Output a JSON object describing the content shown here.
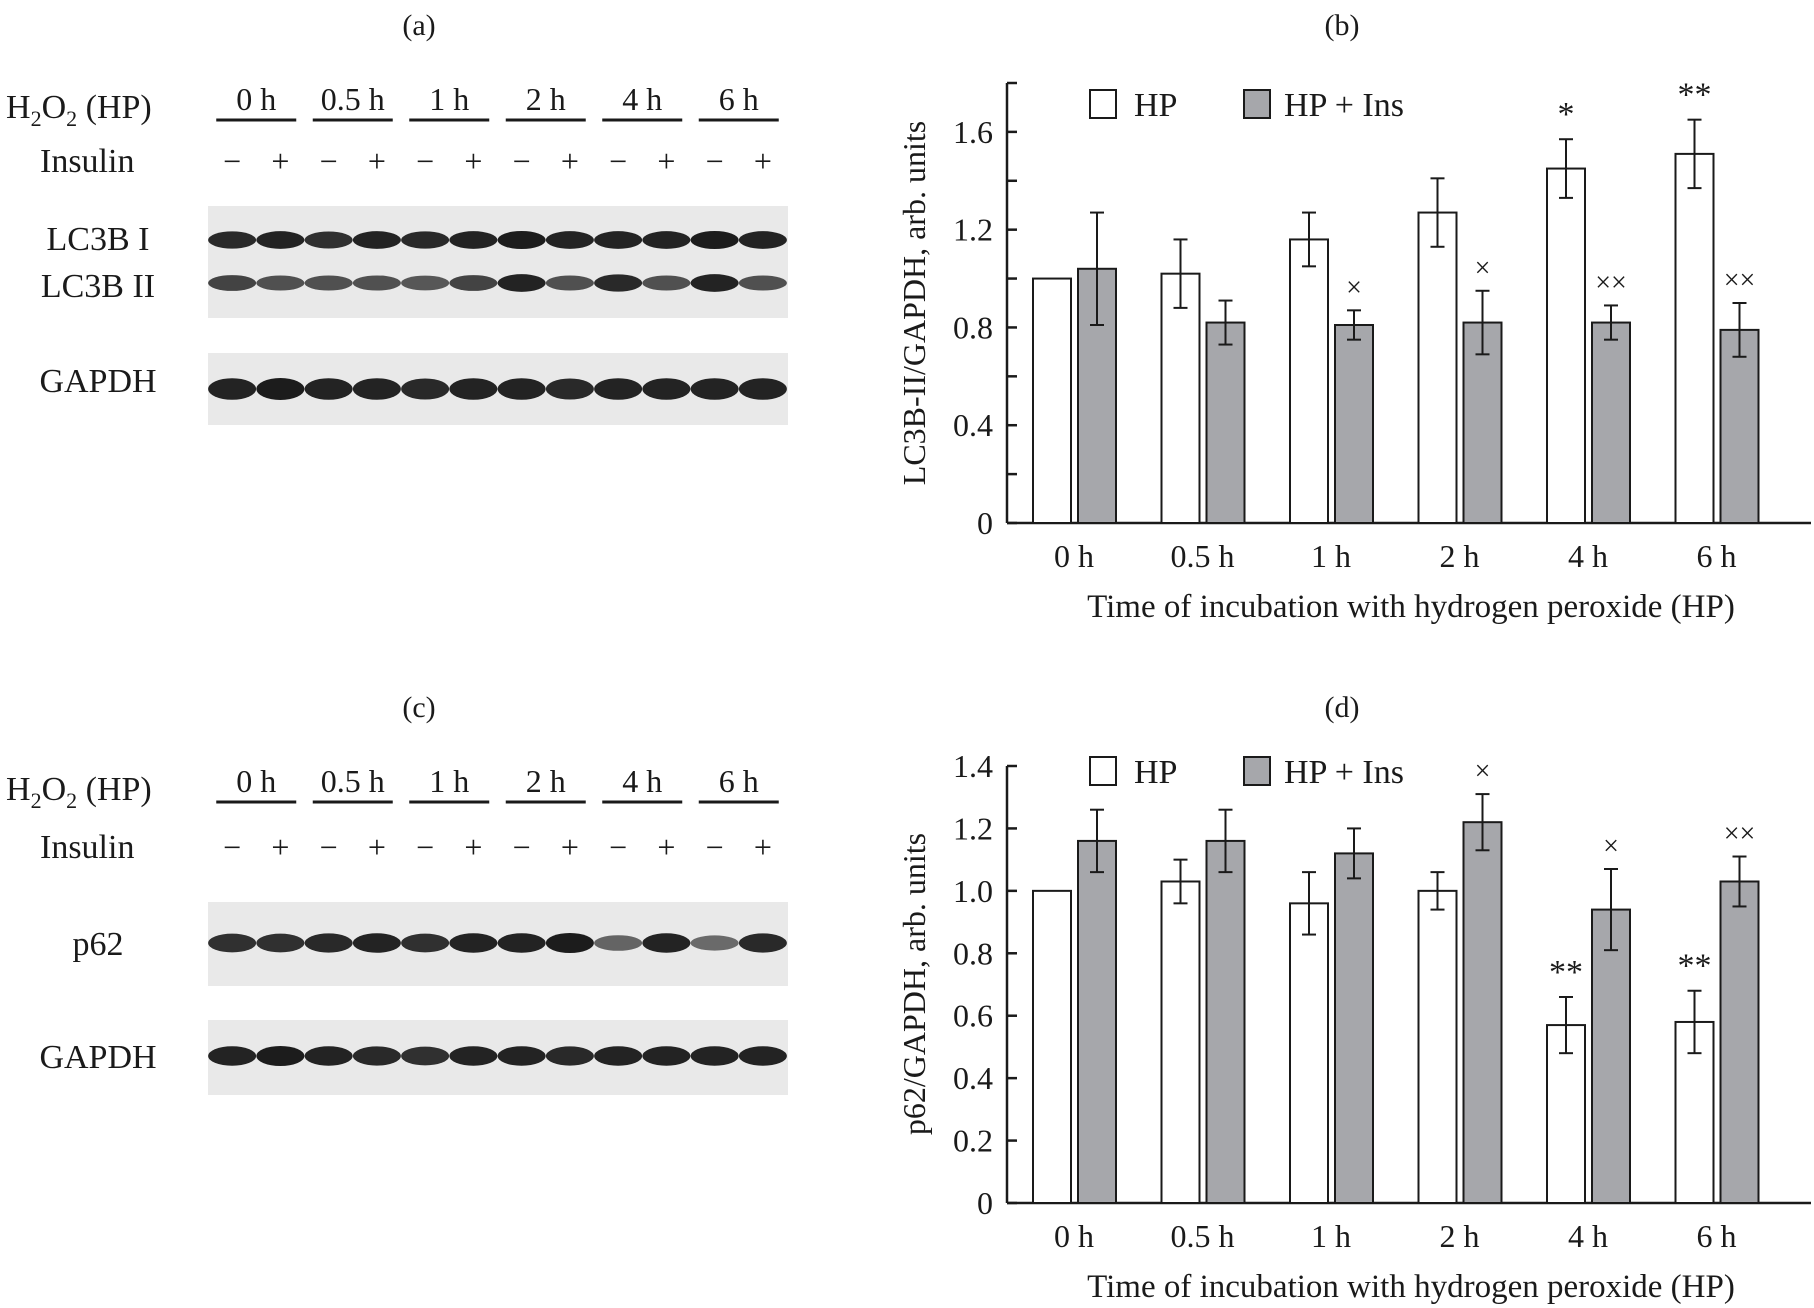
{
  "panels": {
    "a": {
      "label": "(a)",
      "h2o2_parts": [
        "H",
        "2",
        "O",
        "2",
        " (HP)"
      ],
      "insulin_label": "Insulin",
      "times": [
        "0 h",
        "0.5 h",
        "1 h",
        "2 h",
        "4 h",
        "6 h"
      ],
      "signs": [
        "−",
        "+"
      ],
      "bands": [
        "LC3B I",
        "LC3B II",
        "GAPDH"
      ]
    },
    "c": {
      "label": "(c)",
      "h2o2_parts": [
        "H",
        "2",
        "O",
        "2",
        " (HP)"
      ],
      "insulin_label": "Insulin",
      "times": [
        "0 h",
        "0.5 h",
        "1 h",
        "2 h",
        "4 h",
        "6 h"
      ],
      "signs": [
        "−",
        "+"
      ],
      "bands": [
        "p62",
        "GAPDH"
      ]
    }
  },
  "colors": {
    "hp": "#ffffff",
    "hp_ins": "#a6a7ab",
    "axis": "#1a1a1a"
  },
  "chart_data": [
    {
      "panel": "(b)",
      "type": "bar",
      "categories": [
        "0 h",
        "0.5 h",
        "1 h",
        "2 h",
        "4 h",
        "6 h"
      ],
      "series": [
        {
          "name": "HP",
          "values": [
            1.0,
            1.02,
            1.16,
            1.27,
            1.45,
            1.51
          ],
          "errors": [
            0,
            0.14,
            0.11,
            0.14,
            0.12,
            0.14
          ],
          "marks": [
            "",
            "",
            "",
            "",
            "*",
            "**"
          ]
        },
        {
          "name": "HP + Ins",
          "values": [
            1.04,
            0.82,
            0.81,
            0.82,
            0.82,
            0.79
          ],
          "errors": [
            0.23,
            0.09,
            0.06,
            0.13,
            0.07,
            0.11
          ],
          "marks": [
            "",
            "",
            "×",
            "×",
            "××",
            "××"
          ]
        }
      ],
      "xlabel": "Time of incubation with hydrogen peroxide (HP)",
      "ylabel": "LC3B-II/GAPDH, arb. units",
      "ylim": [
        0,
        1.8
      ],
      "yticks": [
        "0",
        "0.4",
        "0.8",
        "1.2",
        "1.6"
      ],
      "ytick_values": [
        0,
        0.4,
        0.8,
        1.2,
        1.6
      ],
      "minor_step": 0.2,
      "legend": "top"
    },
    {
      "panel": "(d)",
      "type": "bar",
      "categories": [
        "0 h",
        "0.5 h",
        "1 h",
        "2 h",
        "4 h",
        "6 h"
      ],
      "series": [
        {
          "name": "HP",
          "values": [
            1.0,
            1.03,
            0.96,
            1.0,
            0.57,
            0.58
          ],
          "errors": [
            0,
            0.07,
            0.1,
            0.06,
            0.09,
            0.1
          ],
          "marks": [
            "",
            "",
            "",
            "",
            "**",
            "**"
          ]
        },
        {
          "name": "HP + Ins",
          "values": [
            1.16,
            1.16,
            1.12,
            1.22,
            0.94,
            1.03
          ],
          "errors": [
            0.1,
            0.1,
            0.08,
            0.09,
            0.13,
            0.08
          ],
          "marks": [
            "",
            "",
            "",
            "×",
            "×",
            "××"
          ]
        }
      ],
      "xlabel": "Time of incubation with hydrogen peroxide (HP)",
      "ylabel": "p62/GAPDH, arb. units",
      "ylim": [
        0,
        1.4
      ],
      "yticks": [
        "0",
        "0.2",
        "0.4",
        "0.6",
        "0.8",
        "1.0",
        "1.2",
        "1.4"
      ],
      "ytick_values": [
        0,
        0.2,
        0.4,
        0.6,
        0.8,
        1.0,
        1.2,
        1.4
      ],
      "minor_step": 0.2,
      "legend": "top"
    }
  ]
}
